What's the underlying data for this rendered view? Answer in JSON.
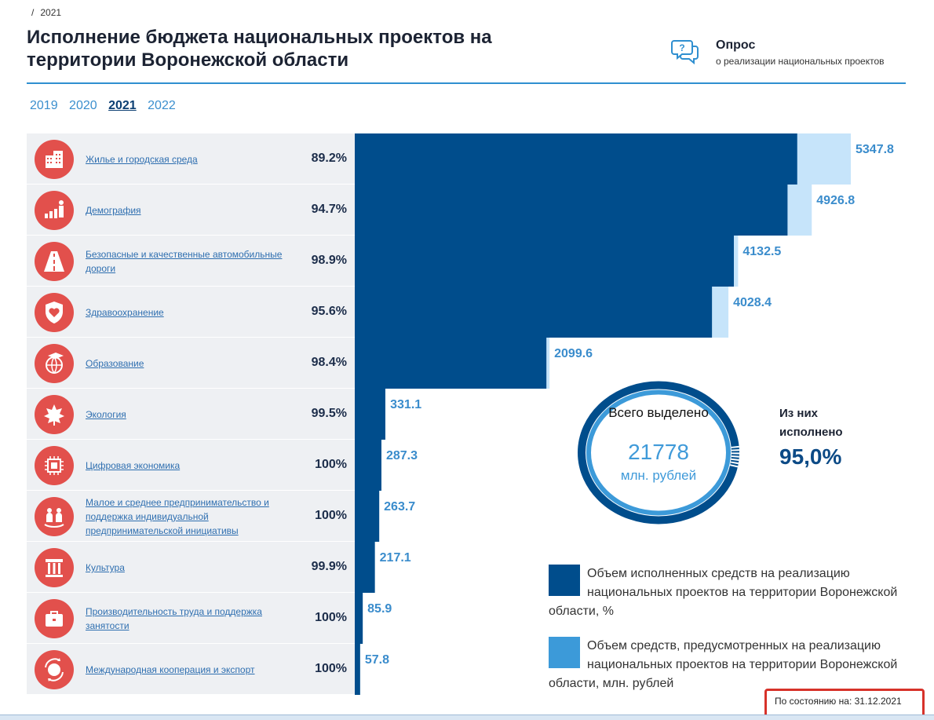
{
  "breadcrumb": {
    "separator": "/",
    "current": "2021"
  },
  "page_title": "Исполнение бюджета национальных проектов на территории Воронежской области",
  "survey": {
    "title": "Опрос",
    "subtitle": "о реализации национальных проектов",
    "icon": "chat-question-icon"
  },
  "years": [
    {
      "label": "2019",
      "active": false
    },
    {
      "label": "2020",
      "active": false
    },
    {
      "label": "2021",
      "active": true
    },
    {
      "label": "2022",
      "active": false
    }
  ],
  "colors": {
    "executed": "#004d8c",
    "allocated": "#c6e4fa",
    "value_label": "#3a8ccc",
    "icon_bg": "#e2504c",
    "legend_executed": "#004d8c",
    "legend_allocated": "#3c9ad9"
  },
  "projects": [
    {
      "name": "Жилье и городская среда",
      "percent": "89.2%",
      "icon": "buildings-icon"
    },
    {
      "name": "Демография",
      "percent": "94.7%",
      "icon": "growth-chart-icon"
    },
    {
      "name": "Безопасные и качественные автомобильные дороги",
      "percent": "98.9%",
      "icon": "road-icon"
    },
    {
      "name": "Здравоохранение",
      "percent": "95.6%",
      "icon": "heart-shield-icon"
    },
    {
      "name": "Образование",
      "percent": "98.4%",
      "icon": "globe-graduation-icon"
    },
    {
      "name": "Экология",
      "percent": "99.5%",
      "icon": "leaf-icon"
    },
    {
      "name": "Цифровая экономика",
      "percent": "100%",
      "icon": "chip-icon"
    },
    {
      "name": "Малое и среднее предпринимательство и поддержка индивидуальной предпринимательской инициативы",
      "percent": "100%",
      "icon": "people-icon"
    },
    {
      "name": "Культура",
      "percent": "99.9%",
      "icon": "column-icon"
    },
    {
      "name": "Производительность труда и поддержка занятости",
      "percent": "100%",
      "icon": "briefcase-icon"
    },
    {
      "name": "Международная кооперация и экспорт",
      "percent": "100%",
      "icon": "globe-arrows-icon"
    }
  ],
  "chart_data": {
    "type": "bar",
    "orientation": "horizontal",
    "categories": [
      "Жилье и городская среда",
      "Демография",
      "Безопасные и качественные автомобильные дороги",
      "Здравоохранение",
      "Образование",
      "Экология",
      "Цифровая экономика",
      "Малое и среднее предпринимательство и поддержка индивидуальной предпринимательской инициативы",
      "Культура",
      "Производительность труда и поддержка занятости",
      "Международная кооперация и экспорт"
    ],
    "series": [
      {
        "name": "Объем средств, предусмотренных на реализацию национальных проектов на территории Воронежской области, млн. рублей",
        "values": [
          5347.8,
          4926.8,
          4132.5,
          4028.4,
          2099.6,
          331.1,
          287.3,
          263.7,
          217.1,
          85.9,
          57.8
        ]
      },
      {
        "name": "Объем исполненных средств на реализацию национальных проектов на территории Воронежской области, %",
        "values": [
          89.2,
          94.7,
          98.9,
          95.6,
          98.4,
          99.5,
          100,
          100,
          99.9,
          100,
          100
        ]
      }
    ],
    "value_labels": [
      "5347.8",
      "4926.8",
      "4132.5",
      "4028.4",
      "2099.6",
      "331.1",
      "287.3",
      "263.7",
      "217.1",
      "85.9",
      "57.8"
    ],
    "xlim": [
      0,
      5347.8
    ],
    "grid": false
  },
  "summary": {
    "total_label": "Всего выделено",
    "total_value": "21778",
    "total_unit": "млн. рублей",
    "executed_label": "Из них исполнено",
    "executed_value": "95,0%",
    "executed_fraction": 0.95
  },
  "legend": [
    {
      "text": "Объем исполненных средств на реализацию национальных проектов на территории Воронежской области, %"
    },
    {
      "text": "Объем средств, предусмотренных на реализацию национальных проектов на территории Воронежской области, млн. рублей"
    }
  ],
  "status": "По состоянию на: 31.12.2021"
}
